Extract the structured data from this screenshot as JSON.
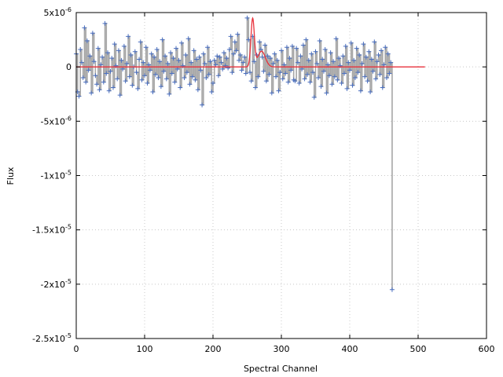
{
  "chart_data": {
    "type": "scatter",
    "xlabel": "Spectral Channel",
    "ylabel": "Flux",
    "xlim": [
      0,
      600
    ],
    "ylim": [
      -2.5e-05,
      5e-06
    ],
    "grid": true,
    "x_ticks": [
      {
        "value": 0,
        "label": "0"
      },
      {
        "value": 100,
        "label": "100"
      },
      {
        "value": 200,
        "label": "200"
      },
      {
        "value": 300,
        "label": "300"
      },
      {
        "value": 400,
        "label": "400"
      },
      {
        "value": 500,
        "label": "500"
      },
      {
        "value": 600,
        "label": "600"
      }
    ],
    "y_ticks": [
      {
        "value": 5e-06,
        "mant": "5x10",
        "exp": "-6"
      },
      {
        "value": 0,
        "mant": "0",
        "exp": ""
      },
      {
        "value": -5e-06,
        "mant": "-5x10",
        "exp": "-6"
      },
      {
        "value": -1e-05,
        "mant": "-1x10",
        "exp": "-5"
      },
      {
        "value": -1.5e-05,
        "mant": "-1.5x10",
        "exp": "-5"
      },
      {
        "value": -2e-05,
        "mant": "-2x10",
        "exp": "-5"
      },
      {
        "value": -2.5e-05,
        "mant": "-2.5x10",
        "exp": "-5"
      }
    ],
    "colors": {
      "data_line": "#a6a6a6",
      "data_marker": "#4a6fc0",
      "model": "#e8323c"
    },
    "series": [
      {
        "kind": "data",
        "x_start": 0,
        "x_step": 2,
        "y_unit": 1e-06,
        "y": [
          1.2,
          -2.3,
          -2.7,
          1.6,
          0.4,
          -1.0,
          3.6,
          -1.4,
          2.4,
          -0.3,
          1.0,
          -2.4,
          3.1,
          0.5,
          -0.8,
          -1.6,
          1.7,
          -2.1,
          0.2,
          0.9,
          -1.4,
          4.0,
          -0.6,
          1.3,
          -2.2,
          -0.4,
          0.8,
          -1.9,
          2.1,
          0.1,
          -1.1,
          1.5,
          -2.6,
          0.6,
          -0.2,
          1.9,
          -1.3,
          0.3,
          2.8,
          -0.9,
          1.1,
          -1.7,
          0.0,
          1.4,
          -0.5,
          -2.0,
          0.7,
          2.3,
          -1.2,
          0.4,
          -0.8,
          1.8,
          -1.5,
          0.2,
          -0.3,
          1.2,
          -2.3,
          0.9,
          -0.7,
          1.6,
          -1.0,
          0.5,
          -1.8,
          2.5,
          -0.4,
          1.0,
          -1.1,
          0.3,
          -2.5,
          1.3,
          -0.6,
          0.8,
          -1.4,
          1.7,
          -0.2,
          0.6,
          -1.9,
          2.2,
          0.1,
          -1.0,
          1.1,
          -0.5,
          2.6,
          -1.6,
          0.4,
          -0.9,
          1.5,
          -1.2,
          0.7,
          -2.1,
          0.9,
          -0.3,
          -3.5,
          1.2,
          0.3,
          -1.0,
          1.8,
          -0.7,
          0.5,
          -2.3,
          -1.5,
          0.6,
          0.2,
          1.0,
          -0.8,
          0.9,
          0.4,
          -0.2,
          1.3,
          0.1,
          0.8,
          -0.1,
          1.6,
          2.8,
          -0.5,
          1.2,
          2.3,
          1.5,
          3.0,
          0.6,
          1.1,
          -0.3,
          0.4,
          0.9,
          -0.6,
          4.5,
          2.5,
          -0.5,
          -1.3,
          2.8,
          0.5,
          -1.9,
          1.1,
          -0.9,
          2.3,
          1.6,
          0.9,
          -0.4,
          2.0,
          -1.3,
          1.0,
          -0.7,
          0.8,
          -2.4,
          0.3,
          1.2,
          -0.9,
          0.6,
          -2.2,
          -0.5,
          1.5,
          -1.1,
          0.2,
          -0.6,
          1.8,
          -1.4,
          0.8,
          -0.3,
          1.9,
          -1.2,
          -1.3,
          1.7,
          0.4,
          -1.5,
          1.0,
          -0.2,
          2.0,
          -1.1,
          2.5,
          -0.7,
          0.6,
          -1.4,
          1.2,
          -0.5,
          -2.8,
          1.4,
          0.3,
          -1.0,
          2.4,
          -1.8,
          0.7,
          -0.4,
          1.6,
          -2.4,
          0.2,
          -0.8,
          1.3,
          -1.6,
          0.5,
          -0.9,
          2.6,
          -1.2,
          0.8,
          0.1,
          -1.5,
          1.0,
          -0.6,
          1.9,
          -2.0,
          0.4,
          -0.3,
          2.2,
          -1.7,
          0.6,
          -1.0,
          1.7,
          -0.5,
          1.1,
          -2.2,
          0.3,
          2.1,
          -0.9,
          0.9,
          -1.3,
          1.4,
          -2.3,
          0.7,
          -0.4,
          2.3,
          -1.1,
          0.5,
          1.1,
          -0.7,
          1.5,
          -1.9,
          0.2,
          1.8,
          -1.0,
          1.2,
          -0.6,
          0.4,
          -20.5
        ]
      },
      {
        "kind": "model",
        "baseline": 0,
        "components": [
          {
            "center": 258,
            "amplitude": 4.4e-06,
            "sigma": 2.5
          },
          {
            "center": 271,
            "amplitude": 1.45e-06,
            "sigma": 5.5
          }
        ],
        "x_range": [
          0,
          510
        ]
      }
    ]
  }
}
